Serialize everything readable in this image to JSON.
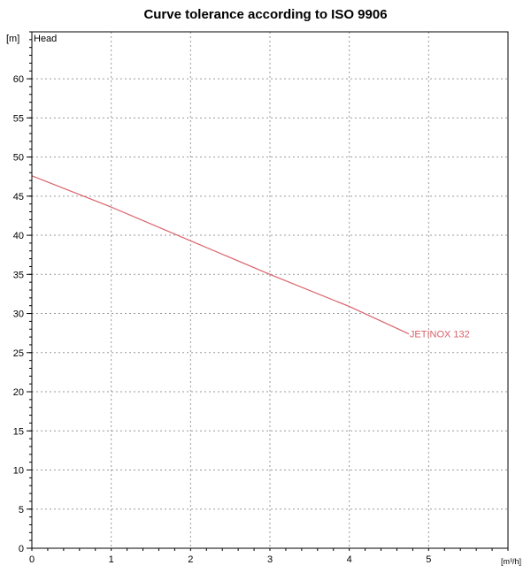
{
  "chart_data": {
    "type": "line",
    "title": "Curve tolerance according to ISO 9906",
    "ylabel": "Head",
    "yunit": "[m]",
    "xunit": "[m³/h]",
    "xlim": [
      0,
      6
    ],
    "ylim": [
      0,
      66
    ],
    "xticks": [
      0,
      1,
      2,
      3,
      4,
      5
    ],
    "yticks": [
      0,
      5,
      10,
      15,
      20,
      25,
      30,
      35,
      40,
      45,
      50,
      55,
      60
    ],
    "grid": true,
    "series": [
      {
        "name": "JETINOX 132",
        "color": "#d9636b",
        "x": [
          0,
          1,
          2,
          3,
          4,
          4.75
        ],
        "y": [
          47.6,
          43.6,
          39.3,
          35.0,
          30.9,
          27.4
        ]
      }
    ]
  }
}
